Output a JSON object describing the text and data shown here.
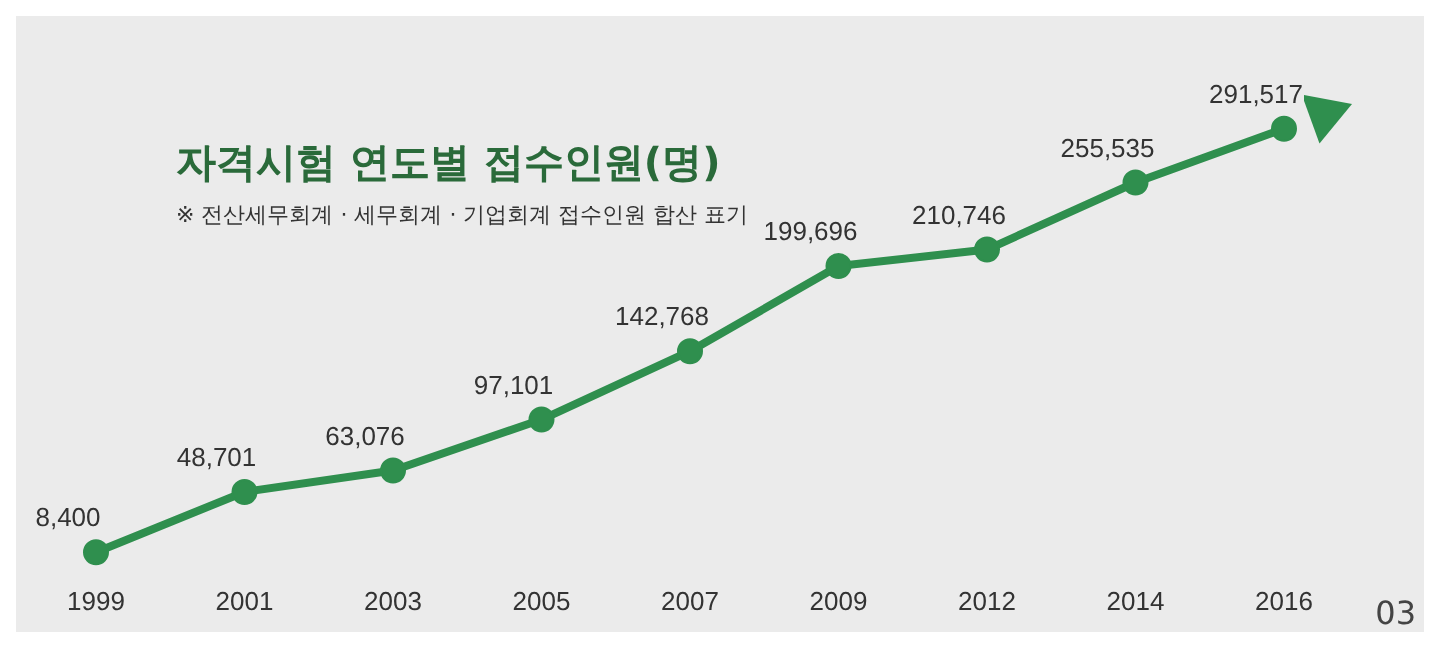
{
  "chart_data": {
    "type": "line",
    "title": "자격시험 연도별 접수인원(명)",
    "subtitle": "※ 전산세무회계 · 세무회계 · 기업회계 접수인원 합산 표기",
    "categories": [
      "1999",
      "2001",
      "2003",
      "2005",
      "2007",
      "2009",
      "2012",
      "2014",
      "2016"
    ],
    "series": [
      {
        "color": "#2f8f4e",
        "values": [
          8400,
          48701,
          63076,
          97101,
          142768,
          199696,
          210746,
          255535,
          291517
        ],
        "value_labels": [
          "8,400",
          "48,701",
          "63,076",
          "97,101",
          "142,768",
          "199,696",
          "210,746",
          "255,535",
          "291,517"
        ]
      }
    ],
    "marker": "circle",
    "grid": false,
    "legend": false,
    "annotations": [
      "03"
    ]
  }
}
